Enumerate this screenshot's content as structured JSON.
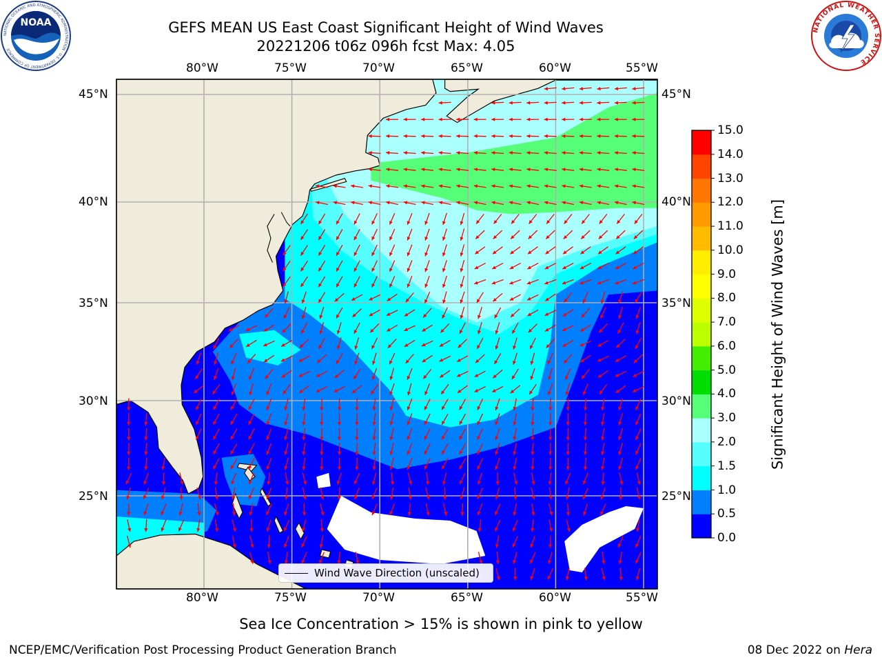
{
  "header": {
    "title_line1": "GEFS MEAN US East Coast Significant Height of Wind Waves",
    "title_line2": "20221206 t06z 096h fcst   Max: 4.05"
  },
  "logos": {
    "noaa_text": "NOAA",
    "noaa_ring": "NATIONAL OCEANIC AND ATMOSPHERIC ADMINISTRATION · U.S. DEPARTMENT OF COMMERCE",
    "nws_ring": "NATIONAL WEATHER SERVICE"
  },
  "map": {
    "lon_labels": [
      "80°W",
      "75°W",
      "70°W",
      "65°W",
      "60°W",
      "55°W"
    ],
    "lat_labels": [
      "45°N",
      "40°N",
      "35°N",
      "30°N",
      "25°N"
    ],
    "lon_range": [
      -85,
      -54.5
    ],
    "lat_range": [
      20.5,
      46
    ],
    "colors": {
      "land": "#efecdc",
      "grid": "#b0b0b0",
      "arrow": "#ff0000"
    }
  },
  "legend": {
    "label": "Wind Wave Direction (unscaled)"
  },
  "colorbar": {
    "label": "Significant Height of Wind Waves [m]",
    "ticks": [
      "15.0",
      "14.0",
      "13.0",
      "12.0",
      "11.0",
      "10.0",
      "9.0",
      "8.0",
      "7.0",
      "6.0",
      "5.0",
      "4.0",
      "3.0",
      "2.0",
      "1.5",
      "1.0",
      "0.5",
      "0.0"
    ],
    "bins": [
      {
        "from": 0.0,
        "to": 0.5,
        "color": "#0000ff"
      },
      {
        "from": 0.5,
        "to": 1.0,
        "color": "#0080ff"
      },
      {
        "from": 1.0,
        "to": 1.5,
        "color": "#00ffff"
      },
      {
        "from": 1.5,
        "to": 2.0,
        "color": "#55ffff"
      },
      {
        "from": 2.0,
        "to": 3.0,
        "color": "#aaffff"
      },
      {
        "from": 3.0,
        "to": 4.0,
        "color": "#55ff77"
      },
      {
        "from": 4.0,
        "to": 5.0,
        "color": "#00dd00"
      },
      {
        "from": 5.0,
        "to": 6.0,
        "color": "#44ee00"
      },
      {
        "from": 6.0,
        "to": 7.0,
        "color": "#bbff00"
      },
      {
        "from": 7.0,
        "to": 8.0,
        "color": "#ddff00"
      },
      {
        "from": 8.0,
        "to": 9.0,
        "color": "#ffff00"
      },
      {
        "from": 9.0,
        "to": 10.0,
        "color": "#ffee00"
      },
      {
        "from": 10.0,
        "to": 11.0,
        "color": "#ffbb00"
      },
      {
        "from": 11.0,
        "to": 12.0,
        "color": "#ff9900"
      },
      {
        "from": 12.0,
        "to": 13.0,
        "color": "#ff7700"
      },
      {
        "from": 13.0,
        "to": 14.0,
        "color": "#ff4400"
      },
      {
        "from": 14.0,
        "to": 15.0,
        "color": "#ff0000"
      }
    ]
  },
  "footer": {
    "note": "Sea Ice Concentration > 15% is shown in pink to yellow",
    "left": "NCEP/EMC/Verification Post Processing Product Generation Branch",
    "date": "08 Dec 2022",
    "on_word": "on",
    "host": "Hera"
  }
}
